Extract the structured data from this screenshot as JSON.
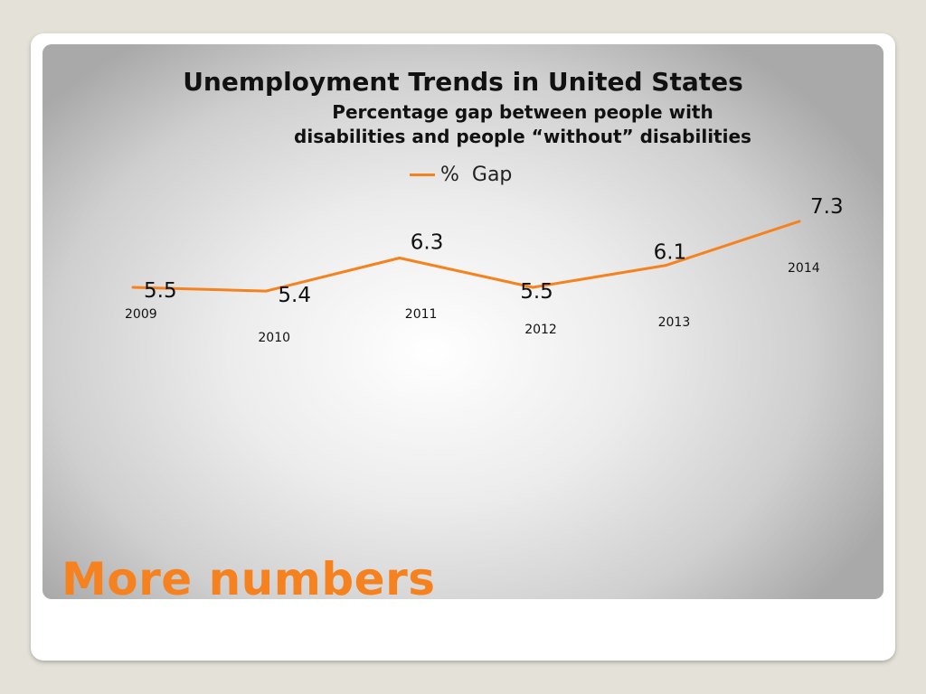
{
  "slide": {
    "title": "More numbers"
  },
  "colors": {
    "series": "#f5821f",
    "slide_title": "#f5821f",
    "text": "#111111"
  },
  "chart_data": {
    "type": "line",
    "title": "Unemployment Trends in United States",
    "subtitle": "Percentage gap between people with disabilities and people “without” disabilities",
    "legend_position": "top",
    "grid": false,
    "categories": [
      "2009",
      "2010",
      "2011",
      "2012",
      "2013",
      "2014"
    ],
    "series": [
      {
        "name": "%  Gap",
        "values": [
          5.5,
          5.4,
          6.3,
          5.5,
          6.1,
          7.3
        ],
        "data_labels": [
          "5.5",
          "5.4",
          "6.3",
          "5.5",
          "6.1",
          "7.3"
        ]
      }
    ]
  }
}
